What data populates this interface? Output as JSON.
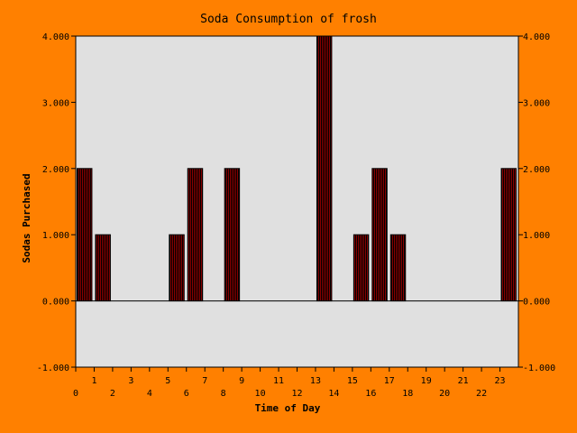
{
  "chart_data": {
    "type": "bar",
    "title": "Soda Consumption of frosh",
    "xlabel": "Time of Day",
    "ylabel": "Sodas Purchased",
    "categories": [
      "0",
      "1",
      "2",
      "3",
      "4",
      "5",
      "6",
      "7",
      "8",
      "9",
      "10",
      "11",
      "12",
      "13",
      "14",
      "15",
      "16",
      "17",
      "18",
      "19",
      "20",
      "21",
      "22",
      "23"
    ],
    "values": [
      2,
      1,
      0,
      0,
      0,
      1,
      2,
      0,
      2,
      0,
      0,
      0,
      0,
      4,
      0,
      1,
      2,
      1,
      0,
      0,
      0,
      0,
      0,
      2
    ],
    "ylim": [
      -1,
      4
    ],
    "yticks": [
      "-1.000",
      "0.000",
      "1.000",
      "2.000",
      "3.000",
      "4.000"
    ],
    "xticks_lower": [
      "0",
      "2",
      "4",
      "6",
      "8",
      "10",
      "12",
      "14",
      "16",
      "18",
      "20",
      "22"
    ],
    "xticks_upper": [
      "1",
      "3",
      "5",
      "7",
      "9",
      "11",
      "13",
      "15",
      "17",
      "19",
      "21",
      "23"
    ],
    "grid": false,
    "legend": "none",
    "colors": {
      "background": "#ff8000",
      "plot_area": "#e0e0e0",
      "bar_fill": "#8b0000",
      "bar_hatch": "#000000",
      "axis": "#000000"
    }
  }
}
